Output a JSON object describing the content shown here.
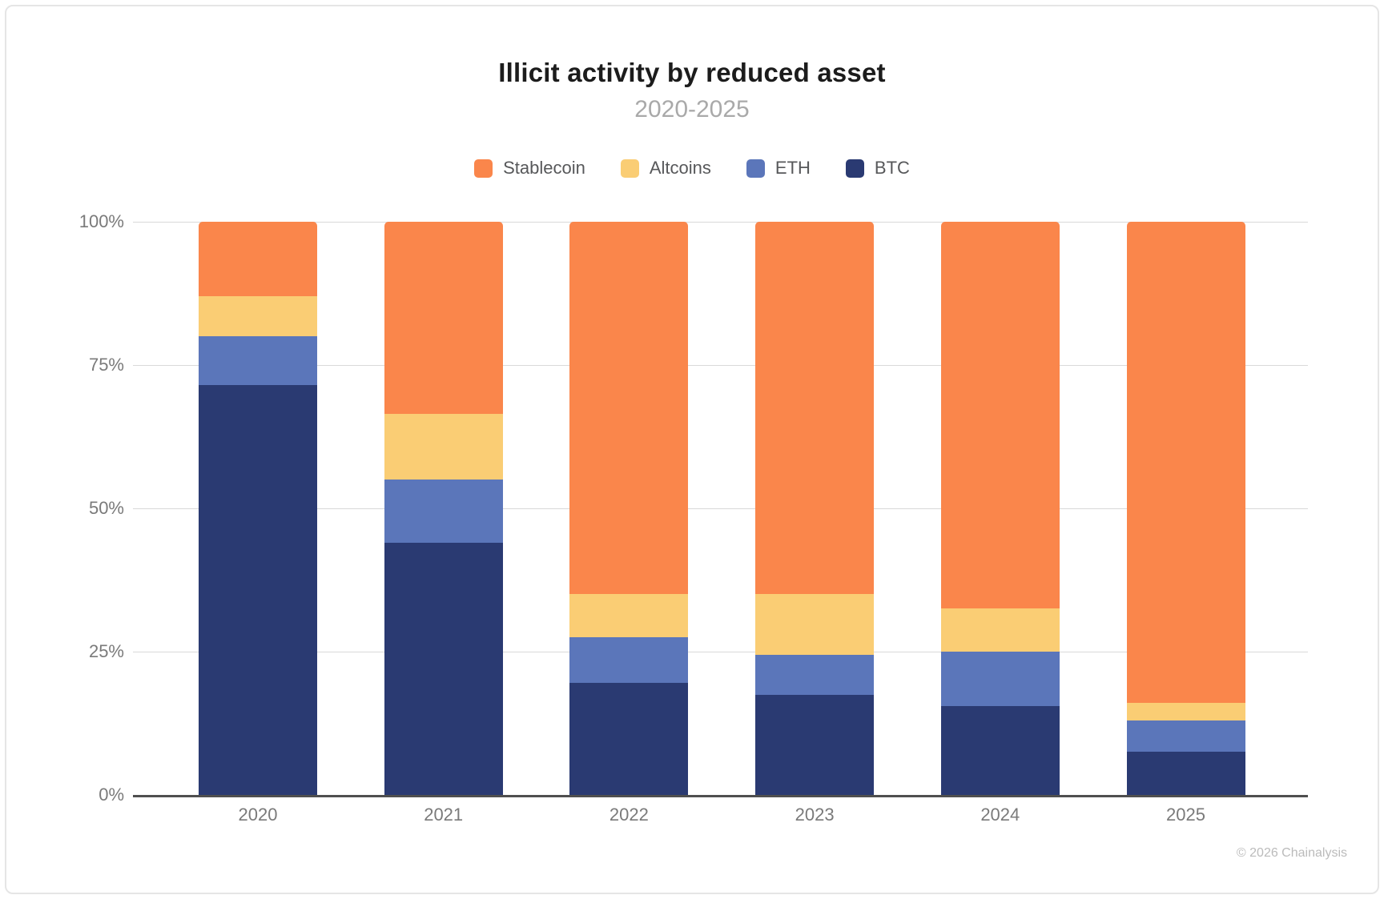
{
  "page": {
    "footer": "© 2026 Chainalysis"
  },
  "chart_data": {
    "type": "bar",
    "stacked": true,
    "normalized": "percent",
    "title": "Illicit activity by reduced asset",
    "subtitle": "2020-2025",
    "categories": [
      "2020",
      "2021",
      "2022",
      "2023",
      "2024",
      "2025"
    ],
    "stack_order": "top-to-bottom",
    "series": [
      {
        "name": "Stablecoin",
        "color": "#fa864b",
        "values": [
          13.0,
          33.5,
          65.0,
          65.0,
          67.5,
          84.0
        ]
      },
      {
        "name": "Altcoins",
        "color": "#facd74",
        "values": [
          7.0,
          11.5,
          7.5,
          10.5,
          7.5,
          3.0
        ]
      },
      {
        "name": "ETH",
        "color": "#5b76ba",
        "values": [
          8.5,
          11.0,
          8.0,
          7.0,
          9.5,
          5.5
        ]
      },
      {
        "name": "BTC",
        "color": "#2a3a72",
        "values": [
          71.5,
          44.0,
          19.5,
          17.5,
          15.5,
          7.5
        ]
      }
    ],
    "legend": [
      "Stablecoin",
      "Altcoins",
      "ETH",
      "BTC"
    ],
    "legend_position": "top-center",
    "y_axis": {
      "ticks": [
        "100%",
        "75%",
        "50%",
        "25%",
        "0%"
      ],
      "min": 0,
      "max": 100
    },
    "grid": true
  },
  "style_colors": {
    "title": "#1c1c1c",
    "subtitle": "#a9a9a9",
    "tick_label": "#7a7a7a",
    "legend_label": "#57585a",
    "gridline": "#d9d9d9",
    "axis_line": "#4f4f4f",
    "footer": "#bbbbbb",
    "card_border": "#e5e5e5"
  }
}
